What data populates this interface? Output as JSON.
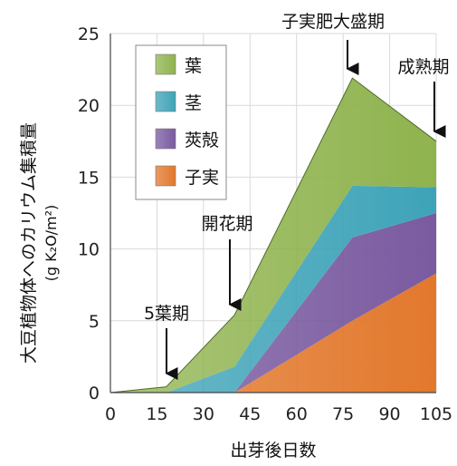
{
  "chart_data": {
    "type": "area",
    "stacked": true,
    "x": [
      0,
      18,
      40,
      78,
      105
    ],
    "xticks": [
      "0",
      "15",
      "30",
      "45",
      "60",
      "75",
      "90",
      "105"
    ],
    "yticks": [
      "0",
      "5",
      "10",
      "15",
      "20",
      "25"
    ],
    "xlim": [
      0,
      105
    ],
    "ylim": [
      0,
      25
    ],
    "xlabel": "出芽後日数",
    "ylabel": "大豆植物体へのカリウム集積量",
    "ylabel_unit": "(g K₂O/m²)",
    "legend_position": "top-left",
    "series": [
      {
        "name": "子実",
        "color": "#e2782c",
        "values": [
          0,
          0,
          0,
          5.0,
          8.3
        ]
      },
      {
        "name": "莢殻",
        "color": "#7a5aa0",
        "values": [
          0,
          0,
          0,
          5.8,
          4.2
        ]
      },
      {
        "name": "茎",
        "color": "#3ea3b8",
        "values": [
          0,
          0,
          1.8,
          3.6,
          1.8
        ]
      },
      {
        "name": "葉",
        "color": "#8fb34e",
        "values": [
          0,
          0.4,
          3.6,
          7.5,
          3.2
        ]
      }
    ],
    "annotations": [
      {
        "text": "5葉期",
        "x": 18
      },
      {
        "text": "開花期",
        "x": 38
      },
      {
        "text": "子実肥大盛期",
        "x": 76
      },
      {
        "text": "成熟期",
        "x": 104
      }
    ]
  }
}
